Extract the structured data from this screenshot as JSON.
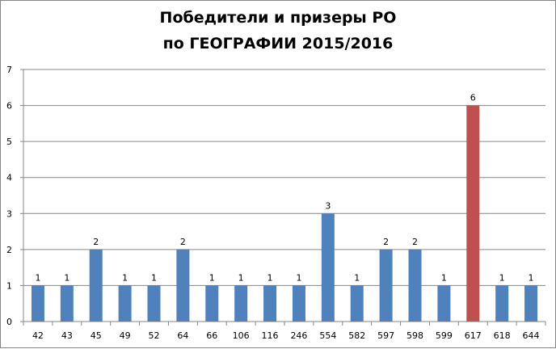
{
  "chart_data": {
    "type": "bar",
    "title_line1": "Победители и призеры РО",
    "title_line2": "по ГЕОГРАФИИ 2015/2016",
    "xlabel": "",
    "ylabel": "",
    "ylim": [
      0,
      7
    ],
    "yticks": [
      0,
      1,
      2,
      3,
      4,
      5,
      6,
      7
    ],
    "grid": true,
    "legend": "none",
    "categories": [
      "42",
      "43",
      "45",
      "49",
      "52",
      "64",
      "66",
      "106",
      "116",
      "246",
      "554",
      "582",
      "597",
      "598",
      "599",
      "617",
      "618",
      "644"
    ],
    "values": [
      1,
      1,
      2,
      1,
      1,
      2,
      1,
      1,
      1,
      1,
      3,
      1,
      2,
      2,
      1,
      6,
      1,
      1
    ],
    "data_labels": true,
    "colors": {
      "default": "#4f81bd",
      "highlight": "#c0504d",
      "grid": "#868686"
    },
    "highlight_category": "617"
  }
}
